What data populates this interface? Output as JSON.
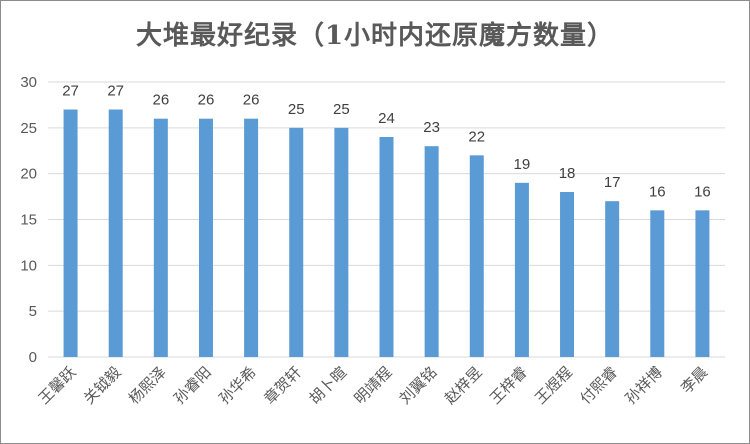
{
  "chart_data": {
    "type": "bar",
    "title": "大堆最好纪录（1小时内还原魔方数量）",
    "categories": [
      "王馨跃",
      "关钺毅",
      "杨熙泽",
      "孙睿阳",
      "孙华希",
      "章贺轩",
      "胡卜暄",
      "明靖程",
      "刘翼铭",
      "赵梓昱",
      "王梓睿",
      "王煜程",
      "付熙睿",
      "孙祥博",
      "李晨"
    ],
    "values": [
      27,
      27,
      26,
      26,
      26,
      25,
      25,
      24,
      23,
      22,
      19,
      18,
      17,
      16,
      16
    ],
    "ylim": [
      0,
      30
    ],
    "yticks": [
      0,
      5,
      10,
      15,
      20,
      25,
      30
    ],
    "grid": true,
    "bar_color": "#5b9bd5",
    "xlabel": "",
    "ylabel": ""
  }
}
